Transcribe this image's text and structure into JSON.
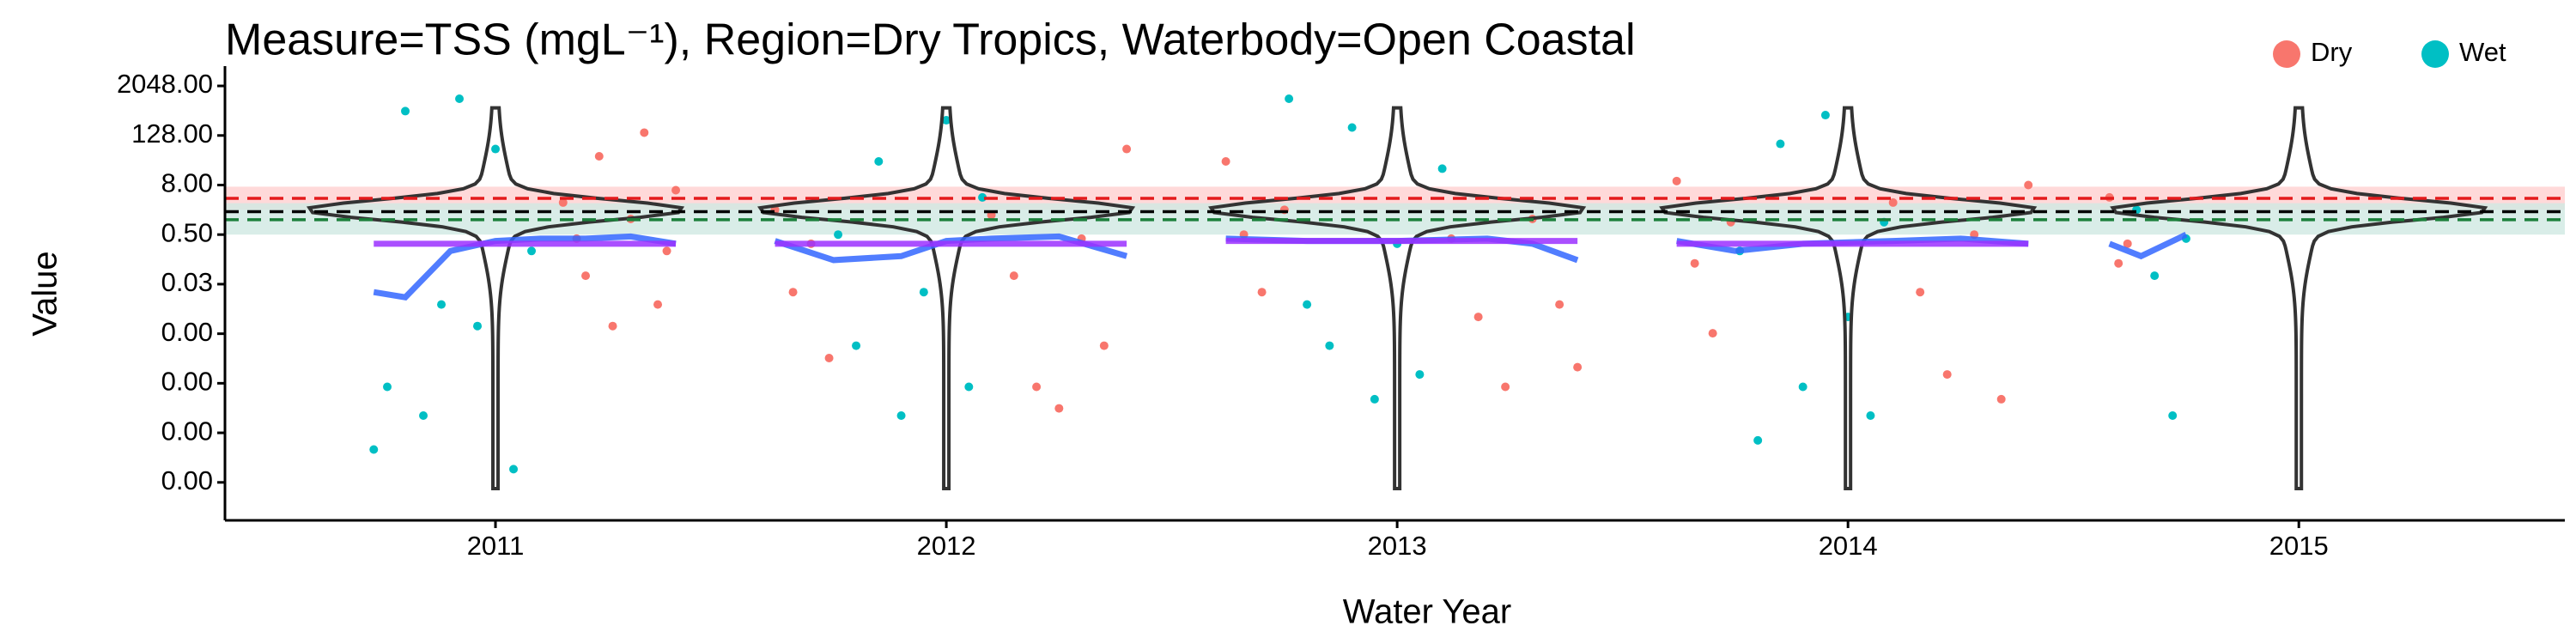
{
  "chart_data": {
    "type": "scatter",
    "title": "Measure=TSS (mgL⁻¹), Region=Dry Tropics, Waterbody=Open Coastal",
    "x_label": "Water Year",
    "y_label": "Value",
    "log": true,
    "xlim": [
      2010.4,
      2015.59
    ],
    "xticks": [
      2011,
      2012,
      2013,
      2014,
      2015
    ],
    "ylim": [
      5.7e-08,
      6200
    ],
    "yticks": [
      {
        "value": 2048,
        "label": "2048.00"
      },
      {
        "value": 128,
        "label": "128.00"
      },
      {
        "value": 8,
        "label": "8.00"
      },
      {
        "value": 0.5,
        "label": "0.50"
      },
      {
        "value": 0.03125,
        "label": "0.03"
      },
      {
        "value": 0.001953125,
        "label": "0.00"
      },
      {
        "value": 0.0001220703125,
        "label": "0.00"
      },
      {
        "value": 7.62939453125e-06,
        "label": "0.00"
      },
      {
        "value": 4.76837158203125e-07,
        "label": "0.00"
      }
    ],
    "legend": "top-right",
    "series": [
      {
        "name": "Dry",
        "color": "#f8766d",
        "x": [
          2011.15,
          2011.18,
          2011.2,
          2011.23,
          2011.26,
          2011.3,
          2011.33,
          2011.36,
          2011.38,
          2011.4,
          2011.62,
          2011.66,
          2011.7,
          2011.74,
          2012.1,
          2012.15,
          2012.2,
          2012.25,
          2012.3,
          2012.35,
          2012.4,
          2012.62,
          2012.66,
          2012.7,
          2012.75,
          2013.12,
          2013.18,
          2013.24,
          2013.3,
          2013.36,
          2013.4,
          2013.62,
          2013.66,
          2013.7,
          2013.74,
          2014.1,
          2014.16,
          2014.22,
          2014.28,
          2014.34,
          2014.4,
          2014.58,
          2014.6,
          2014.62
        ],
        "values": [
          3,
          0.4,
          0.05,
          40,
          0.003,
          1.2,
          150,
          0.01,
          0.2,
          6,
          2,
          0.02,
          0.3,
          0.0005,
          1.5,
          0.05,
          0.0001,
          3e-05,
          0.4,
          0.001,
          60,
          30,
          0.5,
          0.02,
          2,
          0.4,
          0.005,
          0.0001,
          1.2,
          0.01,
          0.0003,
          10,
          0.1,
          0.002,
          1,
          3,
          0.02,
          0.0002,
          0.5,
          5e-05,
          8,
          4,
          0.1,
          0.3
        ]
      },
      {
        "name": "Wet",
        "color": "#00bfc4",
        "x": [
          2010.73,
          2010.76,
          2010.8,
          2010.84,
          2010.88,
          2010.92,
          2010.96,
          2011.0,
          2011.04,
          2011.08,
          2011.76,
          2011.8,
          2011.85,
          2011.9,
          2011.95,
          2012.0,
          2012.05,
          2012.08,
          2012.76,
          2012.8,
          2012.85,
          2012.9,
          2012.95,
          2013.0,
          2013.05,
          2013.1,
          2013.76,
          2013.8,
          2013.85,
          2013.9,
          2013.95,
          2014.0,
          2014.05,
          2014.08,
          2014.64,
          2014.68,
          2014.72,
          2014.75
        ],
        "values": [
          3e-06,
          0.0001,
          500,
          2e-05,
          0.01,
          1000,
          0.003,
          60,
          1e-06,
          0.2,
          0.5,
          0.001,
          30,
          2e-05,
          0.02,
          300,
          0.0001,
          4,
          1000,
          0.01,
          0.001,
          200,
          5e-05,
          0.3,
          0.0002,
          20,
          0.2,
          5e-06,
          80,
          0.0001,
          400,
          0.005,
          2e-05,
          1,
          2,
          0.05,
          2e-05,
          0.4
        ]
      }
    ],
    "smooth": [
      {
        "color": "#3366ff",
        "x": [
          2010.73,
          2010.8,
          2010.9,
          2011.0,
          2011.1,
          2011.2,
          2011.3,
          2011.4
        ],
        "values": [
          0.02,
          0.015,
          0.2,
          0.35,
          0.4,
          0.4,
          0.45,
          0.3
        ]
      },
      {
        "color": "#3366ff",
        "x": [
          2011.62,
          2011.75,
          2011.9,
          2012.0,
          2012.1,
          2012.25,
          2012.4
        ],
        "values": [
          0.35,
          0.12,
          0.15,
          0.35,
          0.4,
          0.45,
          0.15
        ]
      },
      {
        "color": "#3366ff",
        "x": [
          2012.62,
          2012.8,
          2013.0,
          2013.2,
          2013.3,
          2013.4
        ],
        "values": [
          0.4,
          0.35,
          0.35,
          0.4,
          0.3,
          0.12
        ]
      },
      {
        "color": "#3366ff",
        "x": [
          2013.62,
          2013.75,
          2013.9,
          2014.1,
          2014.25,
          2014.4
        ],
        "values": [
          0.35,
          0.2,
          0.3,
          0.35,
          0.4,
          0.3
        ]
      },
      {
        "color": "#3366ff",
        "x": [
          2014.58,
          2014.65,
          2014.75
        ],
        "values": [
          0.3,
          0.15,
          0.5
        ]
      },
      {
        "color": "#9b30ff",
        "x": [
          2010.73,
          2011.4
        ],
        "values": [
          0.3,
          0.3
        ]
      },
      {
        "color": "#9b30ff",
        "x": [
          2011.62,
          2012.4
        ],
        "values": [
          0.3,
          0.3
        ]
      },
      {
        "color": "#9b30ff",
        "x": [
          2012.62,
          2013.4
        ],
        "values": [
          0.35,
          0.35
        ]
      },
      {
        "color": "#9b30ff",
        "x": [
          2013.62,
          2014.4
        ],
        "values": [
          0.3,
          0.3
        ]
      }
    ],
    "bands": [
      {
        "low": 2,
        "high": 7.3,
        "color": "#ffd0d0"
      },
      {
        "low": 0.5,
        "high": 2.9,
        "color": "#cfe8e2"
      }
    ],
    "hlines": [
      {
        "value": 3.8,
        "color": "#e41a1c"
      },
      {
        "value": 1.8,
        "color": "#000000"
      },
      {
        "value": 1.15,
        "color": "#1b7f3a"
      }
    ]
  }
}
